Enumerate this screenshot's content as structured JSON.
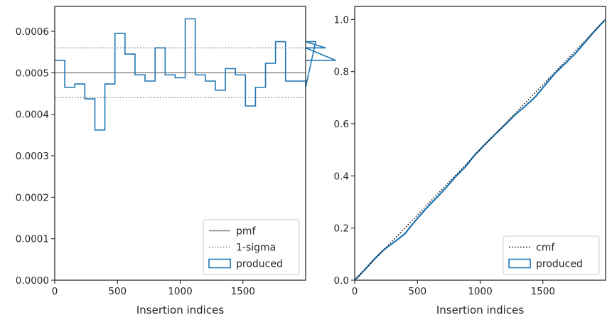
{
  "chart_data": [
    {
      "type": "step",
      "xlabel": "Insertion indices",
      "ylabel": "",
      "xlim": [
        0,
        2000
      ],
      "ylim": [
        0,
        0.00066
      ],
      "xticks": [
        0,
        500,
        1000,
        1500
      ],
      "xtick_labels": [
        "0",
        "500",
        "1000",
        "1500"
      ],
      "yticks": [
        0,
        0.0001,
        0.0002,
        0.0003,
        0.0004,
        0.0005,
        0.0006
      ],
      "ytick_labels": [
        "0.0000",
        "0.0001",
        "0.0002",
        "0.0003",
        "0.0004",
        "0.0005",
        "0.0006"
      ],
      "grid": false,
      "legend_position": "bottom-right",
      "pmf": 0.0005,
      "sigma_band": [
        0.00044,
        0.00056
      ],
      "bin_width": 80,
      "produced": [
        0.00053,
        0.000465,
        0.000473,
        0.000437,
        0.000362,
        0.000473,
        0.000595,
        0.000545,
        0.000495,
        0.00048,
        0.00056,
        0.000495,
        0.000488,
        0.00063,
        0.000495,
        0.00048,
        0.000458,
        0.00051,
        0.000495,
        0.00042,
        0.000465,
        0.000523,
        0.000575,
        0.00048,
        0.00048,
        0.000465,
        0.000575,
        0.00056,
        0.00053
      ],
      "legend": [
        {
          "key": "pmf",
          "label": "pmf",
          "color": "#808080",
          "style": "solid"
        },
        {
          "key": "sigma",
          "label": "1-sigma",
          "color": "#808080",
          "style": "dotted"
        },
        {
          "key": "produced",
          "label": "produced",
          "color": "#1f77b4",
          "style": "patch"
        }
      ]
    },
    {
      "type": "line",
      "xlabel": "Insertion indices",
      "ylabel": "",
      "xlim": [
        0,
        2000
      ],
      "ylim": [
        0,
        1.05
      ],
      "xticks": [
        0,
        500,
        1000,
        1500
      ],
      "xtick_labels": [
        "0",
        "500",
        "1000",
        "1500"
      ],
      "yticks": [
        0,
        0.2,
        0.4,
        0.6,
        0.8,
        1.0
      ],
      "ytick_labels": [
        "0.0",
        "0.2",
        "0.4",
        "0.6",
        "0.8",
        "1.0"
      ],
      "grid": false,
      "legend_position": "bottom-right",
      "cmf": {
        "x": [
          0,
          2000
        ],
        "y": [
          0,
          1
        ]
      },
      "produced": {
        "x": [
          0,
          80,
          160,
          240,
          320,
          400,
          480,
          560,
          640,
          720,
          800,
          880,
          960,
          1040,
          1120,
          1200,
          1280,
          1360,
          1440,
          1520,
          1600,
          1680,
          1760,
          1840,
          1920,
          2000
        ],
        "y": [
          0,
          0.04,
          0.083,
          0.12,
          0.148,
          0.178,
          0.226,
          0.27,
          0.31,
          0.35,
          0.395,
          0.434,
          0.482,
          0.522,
          0.56,
          0.597,
          0.635,
          0.668,
          0.703,
          0.75,
          0.795,
          0.832,
          0.87,
          0.915,
          0.96,
          1.0
        ]
      },
      "legend": [
        {
          "key": "cmf",
          "label": "cmf",
          "color": "#000000",
          "style": "dotted"
        },
        {
          "key": "produced",
          "label": "produced",
          "color": "#1f77b4",
          "style": "patch"
        }
      ]
    }
  ]
}
